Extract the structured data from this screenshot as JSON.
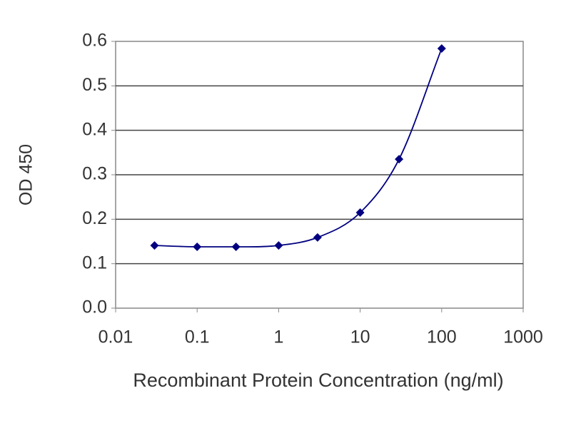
{
  "chart_data": {
    "type": "line",
    "y_label": "OD 450",
    "x_label": "Recombinant Protein Concentration (ng/ml)",
    "x": [
      0.03,
      0.1,
      0.3,
      1,
      3,
      10,
      30,
      100
    ],
    "series": [
      {
        "color": "#000080",
        "values": [
          0.141,
          0.138,
          0.138,
          0.141,
          0.159,
          0.215,
          0.335,
          0.584
        ]
      }
    ],
    "xlim": [
      0.01,
      1000
    ],
    "xticks": [
      0.01,
      0.1,
      1,
      10,
      100,
      1000
    ],
    "ylim": [
      0,
      0.6
    ],
    "yticks": [
      {
        "value": 0,
        "label": "0.0"
      },
      0.1,
      0.2,
      0.3,
      0.4,
      0.5,
      0.6
    ],
    "log_x": true,
    "grid": true,
    "markers": "diamond",
    "smooth": true
  }
}
